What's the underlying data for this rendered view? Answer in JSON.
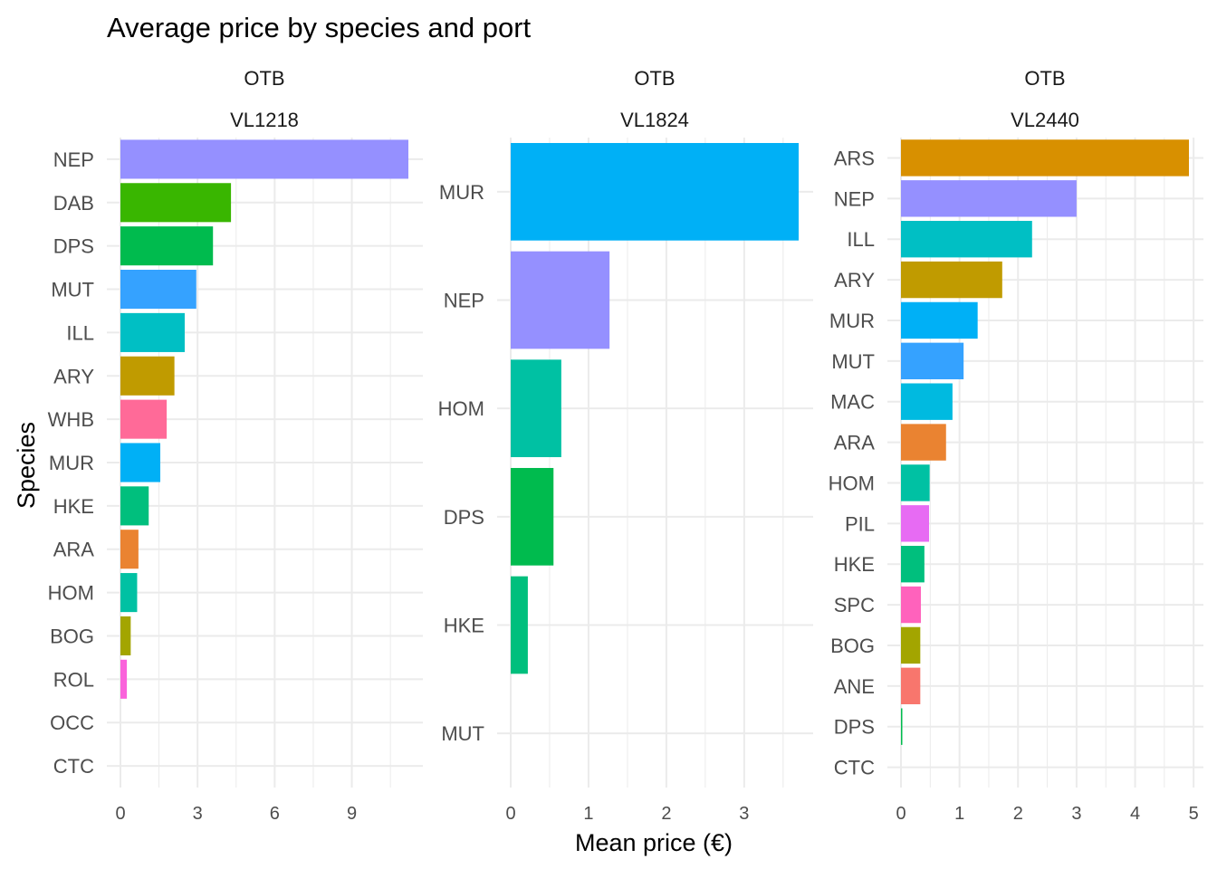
{
  "chart_data": {
    "type": "bar",
    "orientation": "horizontal",
    "title": "Average price by species and port",
    "xlabel": "Mean price (€)",
    "ylabel": "Species",
    "grid": true,
    "legend": "none",
    "facets": [
      {
        "strip": [
          "OTB",
          "VL1218"
        ],
        "xlim": [
          0,
          11.2
        ],
        "xticks": [
          0,
          3,
          6,
          9
        ],
        "categories": [
          "NEP",
          "DAB",
          "DPS",
          "MUT",
          "ILL",
          "ARY",
          "WHB",
          "MUR",
          "HKE",
          "ARA",
          "HOM",
          "BOG",
          "ROL",
          "OCC",
          "CTC"
        ],
        "values": [
          11.2,
          4.3,
          3.6,
          2.95,
          2.5,
          2.1,
          1.8,
          1.55,
          1.1,
          0.7,
          0.65,
          0.4,
          0.25,
          0.0,
          0.0
        ]
      },
      {
        "strip": [
          "OTB",
          "VL1824"
        ],
        "xlim": [
          0,
          3.7
        ],
        "xticks": [
          0,
          1,
          2,
          3
        ],
        "categories": [
          "MUR",
          "NEP",
          "HOM",
          "DPS",
          "HKE",
          "MUT"
        ],
        "values": [
          3.7,
          1.27,
          0.65,
          0.55,
          0.22,
          0.0
        ]
      },
      {
        "strip": [
          "OTB",
          "VL2440"
        ],
        "xlim": [
          0,
          4.92
        ],
        "xticks": [
          0,
          1,
          2,
          3,
          4,
          5
        ],
        "categories": [
          "ARS",
          "NEP",
          "ILL",
          "ARY",
          "MUR",
          "MUT",
          "MAC",
          "ARA",
          "HOM",
          "PIL",
          "HKE",
          "SPC",
          "BOG",
          "ANE",
          "DPS",
          "CTC"
        ],
        "values": [
          4.92,
          3.0,
          2.24,
          1.73,
          1.31,
          1.07,
          0.88,
          0.77,
          0.49,
          0.48,
          0.4,
          0.34,
          0.33,
          0.33,
          0.02,
          0.0
        ]
      }
    ],
    "species_colors": {
      "ANE": "#F8766D",
      "ARA": "#EA8331",
      "ARS": "#D89000",
      "ARY": "#C09B00",
      "BOG": "#A3A500",
      "CTC": "#7CAE00",
      "DAB": "#39B600",
      "DPS": "#00BB4E",
      "HKE": "#00BF7D",
      "HOM": "#00C1A3",
      "ILL": "#00BFC4",
      "MAC": "#00BAE0",
      "MUR": "#00B0F6",
      "MUT": "#35A2FF",
      "NEP": "#9590FF",
      "OCC": "#C77CFF",
      "PIL": "#E76BF3",
      "ROL": "#FA62DB",
      "SPC": "#FF62BC",
      "WHB": "#FF6A98"
    }
  }
}
